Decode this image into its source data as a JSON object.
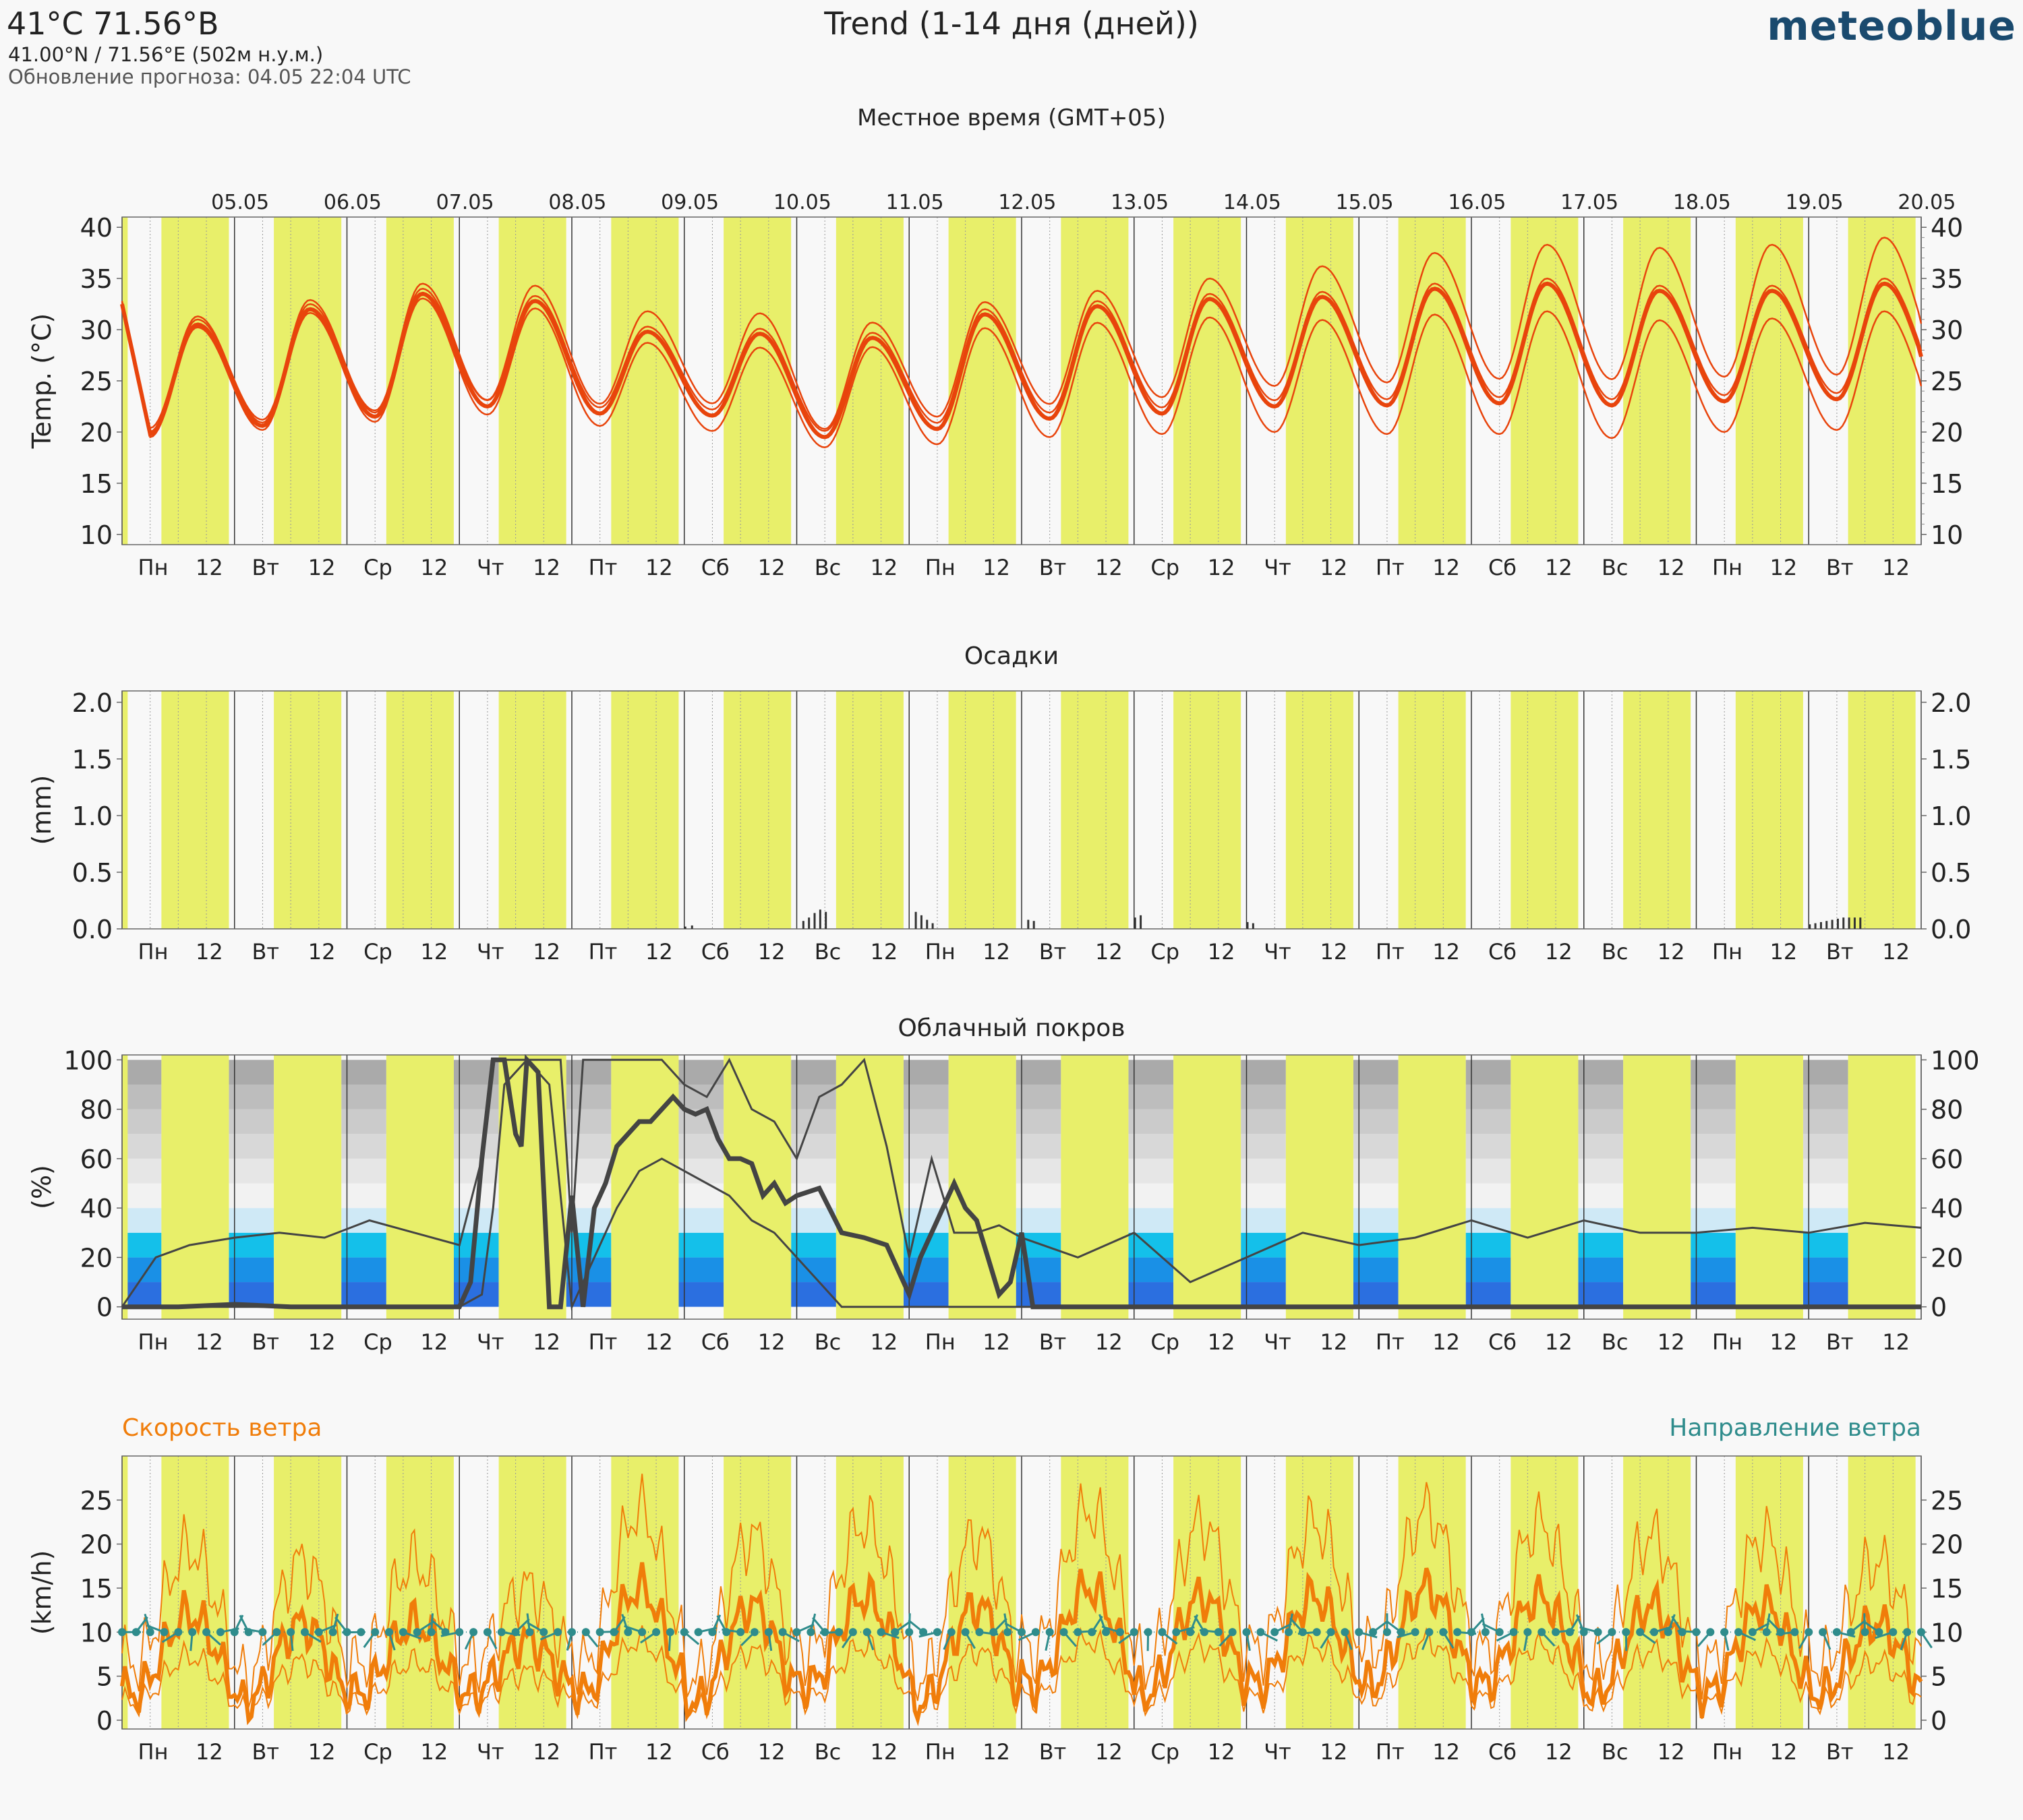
{
  "header": {
    "location_title": "41°C 71.56°В",
    "coords": "41.00°N / 71.56°E (502м н.у.м.)",
    "update": "Обновление прогноза: 04.05 22:04 UTC",
    "title": "Trend (1-14 дня (дней))",
    "logo": "meteoblue",
    "timezone": "Местное время (GMT+05)"
  },
  "colors": {
    "day_band": "#e8ef6a",
    "temperature": "#e8440c",
    "wind_speed": "#f07d0a",
    "wind_direction": "#2f8c8c",
    "cloud_line": "#444444",
    "precip_bar": "#333333"
  },
  "date_labels": [
    "05.05",
    "06.05",
    "07.05",
    "08.05",
    "09.05",
    "10.05",
    "11.05",
    "12.05",
    "13.05",
    "14.05",
    "15.05",
    "16.05",
    "17.05",
    "18.05",
    "19.05",
    "20.05"
  ],
  "x_tick_labels": [
    "Пн",
    "12",
    "Вт",
    "12",
    "Ср",
    "12",
    "Чт",
    "12",
    "Пт",
    "12",
    "Сб",
    "12",
    "Вс",
    "12",
    "Пн",
    "12",
    "Вт",
    "12",
    "Ср",
    "12",
    "Чт",
    "12",
    "Пт",
    "12",
    "Сб",
    "12",
    "Вс",
    "12",
    "Пн",
    "12",
    "Вт",
    "12"
  ],
  "chart_data": [
    {
      "type": "line",
      "title": "",
      "ylabel": "Temp. (°C)",
      "ylim": [
        9,
        41
      ],
      "yticks": [
        10,
        15,
        20,
        25,
        30,
        35,
        40
      ],
      "x_unit": "days from 04.05 00:00 local",
      "x_range": [
        0,
        16
      ],
      "daily_min_mean": [
        19.8,
        20.6,
        21.5,
        22.5,
        21.8,
        21.6,
        19.5,
        20.3,
        21.3,
        21.8,
        22.5,
        22.6,
        22.8,
        22.6,
        23.0,
        23.2
      ],
      "daily_max_mean": [
        30.5,
        32.0,
        33.5,
        32.8,
        29.8,
        29.6,
        29.2,
        31.5,
        32.3,
        33.0,
        33.2,
        34.0,
        34.5,
        33.8,
        33.8,
        34.5
      ],
      "series": [
        {
          "name": "",
          "role": "mean"
        },
        {
          "name": "",
          "role": "upper",
          "max_offset": [
            0.8,
            0.9,
            1.0,
            1.5,
            2.0,
            2.0,
            1.5,
            1.2,
            1.5,
            2.0,
            3.0,
            3.5,
            3.8,
            4.2,
            4.5,
            4.5
          ]
        },
        {
          "name": "",
          "role": "lower",
          "min_offset": [
            0.3,
            0.4,
            0.5,
            0.8,
            1.2,
            1.5,
            1.0,
            1.5,
            1.8,
            2.0,
            2.5,
            2.8,
            3.0,
            3.2,
            3.0,
            3.0
          ]
        }
      ]
    },
    {
      "type": "bar",
      "title": "Осадки",
      "ylabel": "(mm)",
      "ylim": [
        0,
        2.1
      ],
      "yticks": [
        "0.0",
        "0.5",
        "1.0",
        "1.5",
        "2.0"
      ],
      "x_unit": "days from 04.05 00:00 local",
      "bars": [
        {
          "x": 5.0,
          "v": 0.02
        },
        {
          "x": 5.06,
          "v": 0.03
        },
        {
          "x": 6.05,
          "v": 0.07
        },
        {
          "x": 6.1,
          "v": 0.1
        },
        {
          "x": 6.15,
          "v": 0.14
        },
        {
          "x": 6.2,
          "v": 0.17
        },
        {
          "x": 6.25,
          "v": 0.15
        },
        {
          "x": 7.05,
          "v": 0.15
        },
        {
          "x": 7.1,
          "v": 0.12
        },
        {
          "x": 7.15,
          "v": 0.08
        },
        {
          "x": 7.2,
          "v": 0.05
        },
        {
          "x": 8.05,
          "v": 0.08
        },
        {
          "x": 8.1,
          "v": 0.07
        },
        {
          "x": 9.0,
          "v": 0.1
        },
        {
          "x": 9.05,
          "v": 0.12
        },
        {
          "x": 10.0,
          "v": 0.06
        },
        {
          "x": 10.05,
          "v": 0.05
        },
        {
          "x": 15.0,
          "v": 0.04
        },
        {
          "x": 15.05,
          "v": 0.05
        },
        {
          "x": 15.1,
          "v": 0.06
        },
        {
          "x": 15.15,
          "v": 0.07
        },
        {
          "x": 15.2,
          "v": 0.08
        },
        {
          "x": 15.25,
          "v": 0.09
        },
        {
          "x": 15.3,
          "v": 0.1
        },
        {
          "x": 15.35,
          "v": 0.1
        },
        {
          "x": 15.4,
          "v": 0.1
        },
        {
          "x": 15.45,
          "v": 0.1
        }
      ]
    },
    {
      "type": "line",
      "title": "Облачный покров",
      "ylabel": "(%)",
      "ylim": [
        -5,
        102
      ],
      "yticks": [
        0,
        20,
        40,
        60,
        80,
        100
      ],
      "x_unit": "days from 04.05 00:00 local",
      "background_bands": [
        {
          "from": 0,
          "to": 10,
          "color": "#2b6fe0"
        },
        {
          "from": 10,
          "to": 20,
          "color": "#1a90e6"
        },
        {
          "from": 20,
          "to": 30,
          "color": "#14c0ea"
        },
        {
          "from": 30,
          "to": 40,
          "color": "#cfe9f6"
        },
        {
          "from": 40,
          "to": 50,
          "color": "#f2f2f2"
        },
        {
          "from": 50,
          "to": 60,
          "color": "#e6e6e6"
        },
        {
          "from": 60,
          "to": 70,
          "color": "#d8d8d8"
        },
        {
          "from": 70,
          "to": 80,
          "color": "#cbcbcb"
        },
        {
          "from": 80,
          "to": 90,
          "color": "#bdbdbd"
        },
        {
          "from": 90,
          "to": 100,
          "color": "#aaaaaa"
        }
      ],
      "series": [
        {
          "name": "",
          "role": "mean",
          "x": [
            0,
            0.2,
            0.5,
            1.0,
            1.5,
            2.0,
            2.5,
            3.0,
            3.1,
            3.2,
            3.3,
            3.4,
            3.5,
            3.55,
            3.6,
            3.7,
            3.8,
            3.9,
            4.0,
            4.1,
            4.2,
            4.3,
            4.4,
            4.5,
            4.6,
            4.7,
            4.8,
            4.9,
            5.0,
            5.1,
            5.2,
            5.3,
            5.4,
            5.5,
            5.6,
            5.7,
            5.8,
            5.9,
            6.0,
            6.2,
            6.4,
            6.6,
            6.8,
            7.0,
            7.1,
            7.2,
            7.3,
            7.4,
            7.5,
            7.6,
            7.7,
            7.8,
            7.9,
            8.0,
            8.1,
            8.3,
            16
          ],
          "y": [
            0,
            0,
            0,
            1,
            0,
            0,
            0,
            0,
            10,
            60,
            100,
            100,
            70,
            65,
            100,
            95,
            0,
            0,
            45,
            0,
            40,
            50,
            65,
            70,
            75,
            75,
            80,
            85,
            80,
            78,
            80,
            68,
            60,
            60,
            58,
            45,
            50,
            42,
            45,
            48,
            30,
            28,
            25,
            5,
            20,
            30,
            40,
            50,
            40,
            35,
            20,
            5,
            10,
            30,
            0,
            0,
            0
          ]
        },
        {
          "name": "",
          "role": "upper",
          "x": [
            0,
            0.3,
            0.6,
            1.0,
            1.4,
            1.8,
            2.2,
            2.6,
            3.0,
            3.2,
            3.3,
            3.4,
            3.6,
            3.8,
            3.9,
            4.0,
            4.1,
            4.2,
            4.4,
            4.6,
            4.8,
            5.0,
            5.2,
            5.4,
            5.6,
            5.8,
            6.0,
            6.2,
            6.4,
            6.6,
            6.8,
            7.0,
            7.2,
            7.4,
            7.6,
            7.8,
            8.0,
            8.5,
            9.0,
            9.5,
            10.0,
            10.5,
            11.0,
            11.5,
            12.0,
            12.5,
            13.0,
            13.5,
            14.0,
            14.5,
            15.0,
            15.5,
            16
          ],
          "y": [
            0,
            20,
            25,
            28,
            30,
            28,
            35,
            30,
            25,
            60,
            100,
            100,
            100,
            100,
            100,
            30,
            100,
            100,
            100,
            100,
            100,
            90,
            85,
            100,
            80,
            75,
            60,
            85,
            90,
            100,
            65,
            20,
            60,
            30,
            30,
            33,
            28,
            20,
            30,
            10,
            20,
            30,
            25,
            28,
            35,
            28,
            35,
            30,
            30,
            32,
            30,
            34,
            32
          ]
        },
        {
          "name": "",
          "role": "lower",
          "x": [
            0,
            0.5,
            1.0,
            1.5,
            2.0,
            2.5,
            3.0,
            3.2,
            3.3,
            3.4,
            3.6,
            3.8,
            4.0,
            4.2,
            4.4,
            4.6,
            4.8,
            5.0,
            5.2,
            5.4,
            5.6,
            5.8,
            6.0,
            6.2,
            6.4,
            16
          ],
          "y": [
            0,
            0,
            0,
            0,
            0,
            0,
            0,
            5,
            40,
            90,
            100,
            90,
            0,
            20,
            40,
            55,
            60,
            55,
            50,
            45,
            35,
            30,
            20,
            10,
            0,
            0
          ]
        }
      ]
    },
    {
      "type": "line",
      "title": "",
      "ylabel": "(km/h)",
      "ylim": [
        -1,
        30
      ],
      "yticks": [
        0,
        5,
        10,
        15,
        20,
        25
      ],
      "x_unit": "days from 04.05 00:00 local",
      "legend_left": "Скорость ветра",
      "legend_right": "Направление ветра",
      "daily_peak_mean": [
        12,
        11,
        11,
        9,
        15,
        13,
        14,
        13,
        15,
        14,
        14,
        15,
        14,
        13,
        13,
        11
      ],
      "daily_low_mean": [
        3,
        2,
        3,
        3,
        3,
        2,
        4,
        2,
        4,
        3,
        4,
        4,
        4,
        3,
        3,
        3
      ],
      "direction_marker_level": 10
    }
  ]
}
